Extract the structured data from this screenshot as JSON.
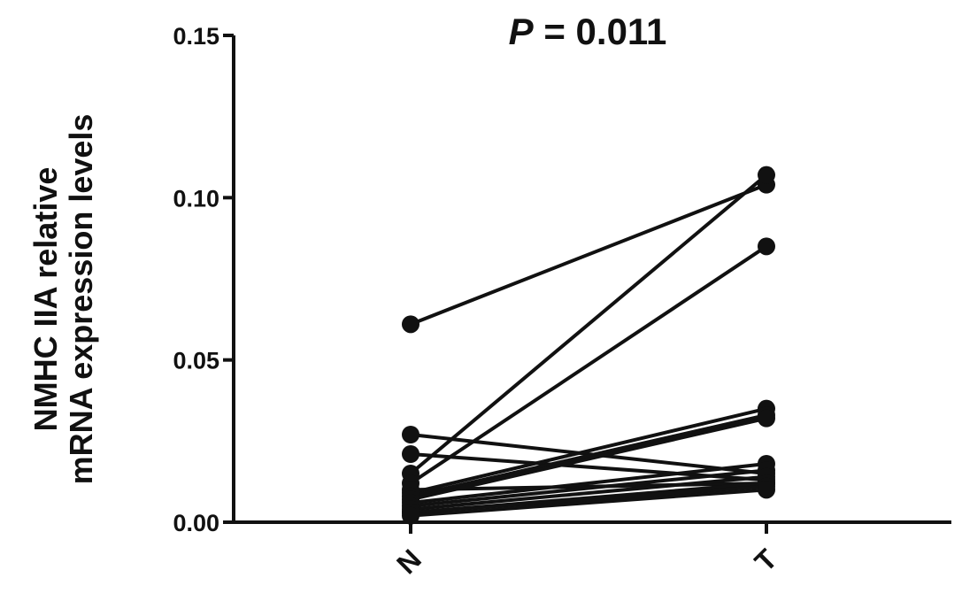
{
  "chart_data": {
    "type": "line",
    "title_prefix": "P",
    "title_suffix": " = 0.011",
    "ylabel_lines": [
      "NMHC IIA relative",
      "mRNA expression levels"
    ],
    "xlabel": "",
    "categories": [
      "N",
      "T"
    ],
    "ylim": [
      0,
      0.15
    ],
    "yticks": [
      "0.00",
      "0.05",
      "0.10",
      "0.15"
    ],
    "ytick_values": [
      0,
      0.05,
      0.1,
      0.15
    ],
    "grid": false,
    "legend": "none",
    "color": "#111111",
    "pairs": [
      {
        "N": 0.061,
        "T": 0.104
      },
      {
        "N": 0.027,
        "T": 0.015
      },
      {
        "N": 0.021,
        "T": 0.013
      },
      {
        "N": 0.015,
        "T": 0.107
      },
      {
        "N": 0.012,
        "T": 0.085
      },
      {
        "N": 0.009,
        "T": 0.035
      },
      {
        "N": 0.01,
        "T": 0.012
      },
      {
        "N": 0.008,
        "T": 0.033
      },
      {
        "N": 0.007,
        "T": 0.032
      },
      {
        "N": 0.006,
        "T": 0.018
      },
      {
        "N": 0.005,
        "T": 0.016
      },
      {
        "N": 0.004,
        "T": 0.014
      },
      {
        "N": 0.003,
        "T": 0.012
      },
      {
        "N": 0.003,
        "T": 0.011
      },
      {
        "N": 0.002,
        "T": 0.01
      }
    ]
  }
}
